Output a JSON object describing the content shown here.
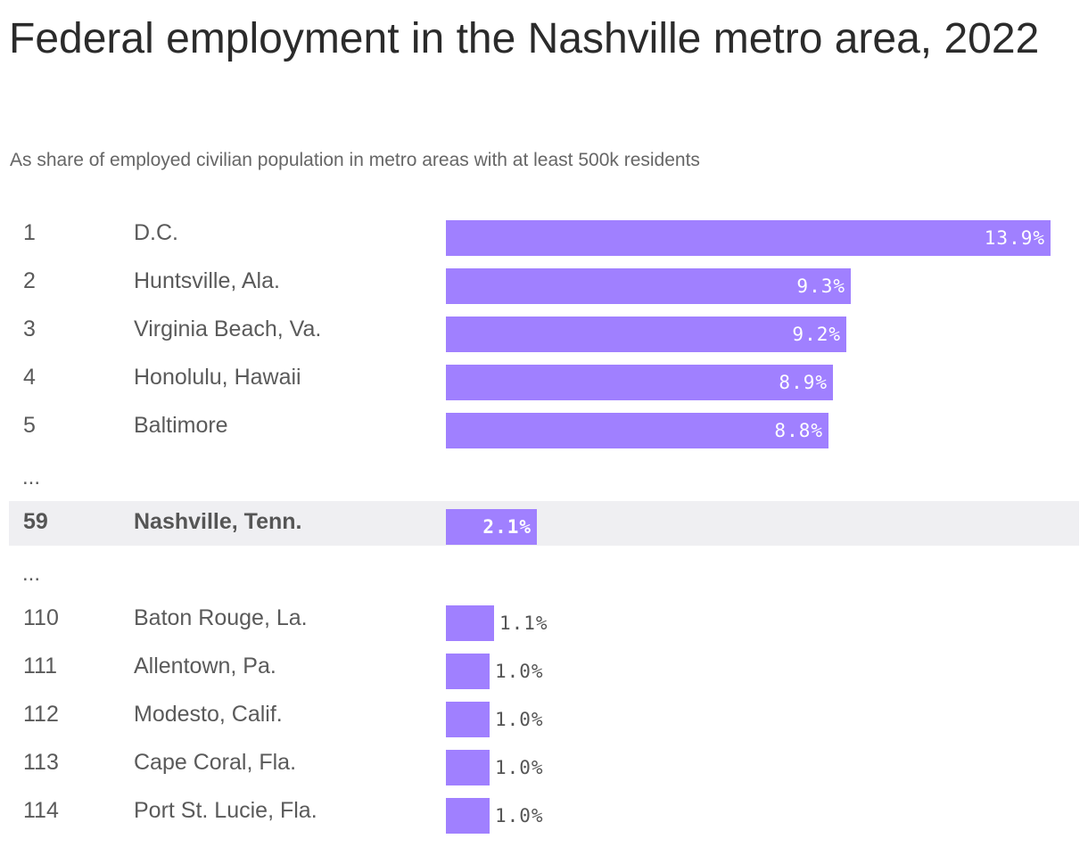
{
  "chart_data": {
    "type": "bar",
    "orientation": "horizontal",
    "title": "Federal employment in the Nashville metro area, 2022",
    "subtitle": "As share of employed civilian population in metro areas with at least 500k residents",
    "xlim": [
      0,
      13.9
    ],
    "bar_color": "#a080ff",
    "highlight_color": "#efeff2",
    "ellipsis_text": "...",
    "rows": [
      {
        "rank": "1",
        "name": "D.C.",
        "value": 13.9,
        "label": "13.9%",
        "highlight": false
      },
      {
        "rank": "2",
        "name": "Huntsville, Ala.",
        "value": 9.3,
        "label": "9.3%",
        "highlight": false
      },
      {
        "rank": "3",
        "name": "Virginia Beach, Va.",
        "value": 9.2,
        "label": "9.2%",
        "highlight": false
      },
      {
        "rank": "4",
        "name": "Honolulu, Hawaii",
        "value": 8.9,
        "label": "8.9%",
        "highlight": false
      },
      {
        "rank": "5",
        "name": "Baltimore",
        "value": 8.8,
        "label": "8.8%",
        "highlight": false
      },
      {
        "ellipsis": true
      },
      {
        "rank": "59",
        "name": "Nashville, Tenn.",
        "value": 2.1,
        "label": "2.1%",
        "highlight": true
      },
      {
        "ellipsis": true
      },
      {
        "rank": "110",
        "name": "Baton Rouge, La.",
        "value": 1.1,
        "label": "1.1%",
        "highlight": false
      },
      {
        "rank": "111",
        "name": "Allentown, Pa.",
        "value": 1.0,
        "label": "1.0%",
        "highlight": false
      },
      {
        "rank": "112",
        "name": "Modesto, Calif.",
        "value": 1.0,
        "label": "1.0%",
        "highlight": false
      },
      {
        "rank": "113",
        "name": "Cape Coral, Fla.",
        "value": 1.0,
        "label": "1.0%",
        "highlight": false
      },
      {
        "rank": "114",
        "name": "Port St. Lucie, Fla.",
        "value": 1.0,
        "label": "1.0%",
        "highlight": false
      }
    ]
  }
}
